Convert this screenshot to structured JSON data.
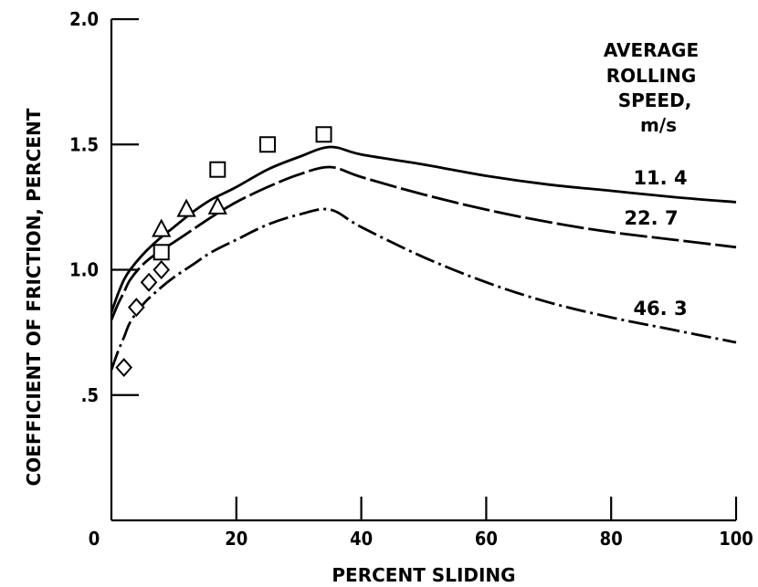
{
  "chart_data": {
    "type": "line",
    "title": "",
    "xlabel": "PERCENT SLIDING",
    "ylabel": "COEFFICIENT OF FRICTION, PERCENT",
    "xlim": [
      0,
      100
    ],
    "ylim": [
      0,
      2.0
    ],
    "x_ticks": [
      {
        "value": 0,
        "label": "0"
      },
      {
        "value": 20,
        "label": "20"
      },
      {
        "value": 40,
        "label": "40"
      },
      {
        "value": 60,
        "label": "60"
      },
      {
        "value": 80,
        "label": "80"
      },
      {
        "value": 100,
        "label": "100"
      }
    ],
    "y_ticks": [
      {
        "value": 0.5,
        "label": ".5"
      },
      {
        "value": 1.0,
        "label": "1.0"
      },
      {
        "value": 1.5,
        "label": "1.5"
      },
      {
        "value": 2.0,
        "label": "2.0"
      }
    ],
    "grid": false,
    "legend_title": [
      "AVERAGE",
      "ROLLING",
      "SPEED,",
      "m/s"
    ],
    "legend_placement": "top-right",
    "series": [
      {
        "name": "11.4",
        "line_style": "solid",
        "x": [
          0,
          1,
          2,
          3,
          5,
          7.5,
          10,
          13,
          16,
          20,
          25,
          30,
          35,
          40,
          50,
          60,
          70,
          80,
          90,
          100
        ],
        "y": [
          0.83,
          0.9,
          0.96,
          1.0,
          1.06,
          1.12,
          1.17,
          1.23,
          1.28,
          1.33,
          1.4,
          1.45,
          1.49,
          1.46,
          1.42,
          1.375,
          1.34,
          1.315,
          1.29,
          1.27
        ]
      },
      {
        "name": "22.7",
        "line_style": "long-dash",
        "x": [
          0,
          1,
          2,
          3,
          5,
          7.5,
          10,
          13,
          16,
          20,
          25,
          30,
          35,
          40,
          50,
          60,
          70,
          80,
          90,
          100
        ],
        "y": [
          0.8,
          0.86,
          0.91,
          0.96,
          1.02,
          1.07,
          1.11,
          1.16,
          1.21,
          1.27,
          1.33,
          1.38,
          1.41,
          1.37,
          1.3,
          1.24,
          1.19,
          1.15,
          1.12,
          1.09
        ]
      },
      {
        "name": "46.3",
        "line_style": "dash-dot",
        "x": [
          0,
          1,
          2,
          3,
          5,
          7.5,
          10,
          13,
          16,
          20,
          25,
          30,
          35,
          40,
          50,
          60,
          70,
          80,
          90,
          100
        ],
        "y": [
          0.6,
          0.67,
          0.73,
          0.79,
          0.86,
          0.92,
          0.97,
          1.02,
          1.07,
          1.12,
          1.18,
          1.22,
          1.24,
          1.17,
          1.05,
          0.95,
          0.87,
          0.81,
          0.76,
          0.71
        ]
      }
    ],
    "curve_labels": [
      {
        "series": "11.4",
        "text": "11. 4"
      },
      {
        "series": "22.7",
        "text": "22. 7"
      },
      {
        "series": "46.3",
        "text": "46. 3"
      }
    ],
    "markers": [
      {
        "shape": "square",
        "points": [
          [
            8,
            1.07
          ],
          [
            17,
            1.4
          ],
          [
            25,
            1.5
          ],
          [
            34,
            1.54
          ]
        ]
      },
      {
        "shape": "triangle",
        "points": [
          [
            8,
            1.16
          ],
          [
            12,
            1.24
          ],
          [
            17,
            1.25
          ]
        ]
      },
      {
        "shape": "diamond",
        "points": [
          [
            2,
            0.61
          ],
          [
            4,
            0.85
          ],
          [
            6,
            0.95
          ],
          [
            8,
            1.0
          ]
        ]
      }
    ]
  }
}
